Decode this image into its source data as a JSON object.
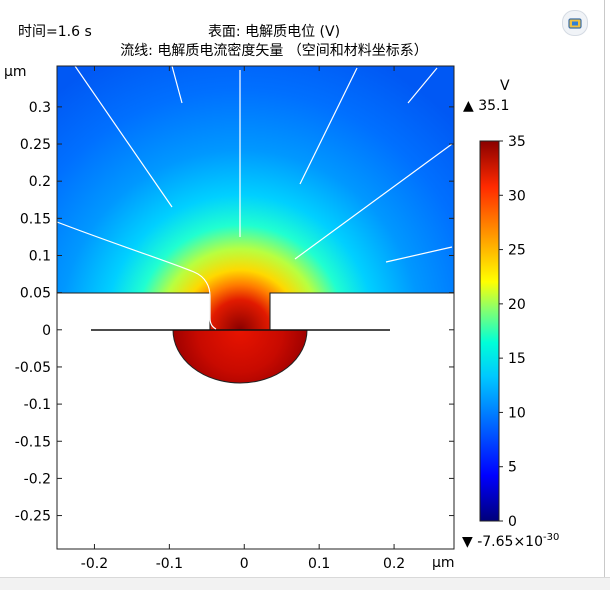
{
  "header": {
    "time_label": "时间=1.6 s",
    "surface_title": "表面: 电解质电位 (V)",
    "streamline_title": "流线: 电解质电流密度矢量  （空间和材料坐标系）"
  },
  "toolbar": {
    "camera_icon": "camera-view-icon"
  },
  "chart_data": {
    "type": "heatmap",
    "title": "表面: 电解质电位 (V)",
    "subtitle": "流线: 电解质电流密度矢量  （空间和材料坐标系）",
    "time": "1.6 s",
    "xlabel": "µm",
    "ylabel": "µm",
    "xlim": [
      -0.25,
      0.28
    ],
    "ylim": [
      -0.295,
      0.355
    ],
    "x_ticks": [
      -0.2,
      -0.1,
      0,
      0.1,
      0.2
    ],
    "x_tick_labels": [
      "-0.2",
      "-0.1",
      "0",
      "0.1",
      "0.2"
    ],
    "y_ticks": [
      0.3,
      0.25,
      0.2,
      0.15,
      0.1,
      0.05,
      0,
      -0.05,
      -0.1,
      -0.15,
      -0.2,
      -0.25
    ],
    "y_tick_labels": [
      "0.3",
      "0.25",
      "0.2",
      "0.15",
      "0.1",
      "0.05",
      "0",
      "-0.05",
      "-0.1",
      "-0.15",
      "-0.2",
      "-0.25"
    ],
    "colorbar": {
      "unit": "V",
      "min": 0,
      "max": 35,
      "ticks": [
        0,
        5,
        10,
        15,
        20,
        25,
        30,
        35
      ],
      "tick_labels": [
        "0",
        "5",
        "10",
        "15",
        "20",
        "25",
        "30",
        "35"
      ],
      "max_marker": "▲ 35.1",
      "min_marker_prefix": "▼ -7.65×10",
      "min_marker_exp": "-30"
    },
    "grid": false,
    "legend_placement": "right"
  }
}
